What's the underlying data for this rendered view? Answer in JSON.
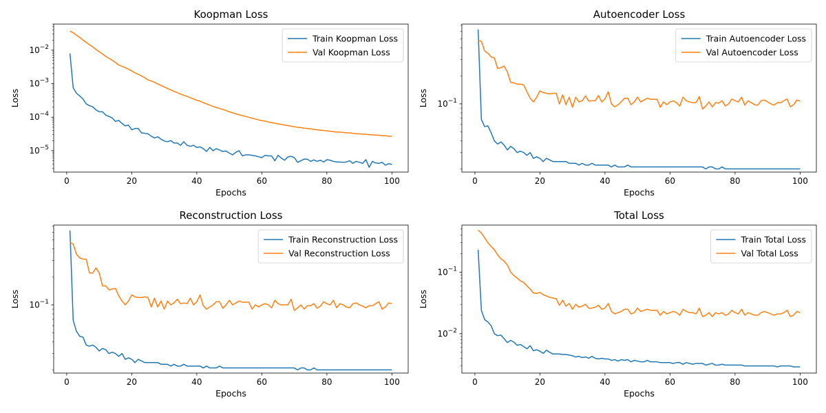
{
  "colors": {
    "train": "#1f77b4",
    "val": "#ff7f0e"
  },
  "chart_data": [
    {
      "type": "line",
      "title": "Koopman Loss",
      "xlabel": "Epochs",
      "ylabel": "Loss",
      "yscale": "log",
      "xlim": [
        -4,
        105
      ],
      "ylim": [
        2.3e-06,
        0.06
      ],
      "xticks": [
        0,
        20,
        40,
        60,
        80,
        100
      ],
      "yticks": [
        {
          "value": 1e-05,
          "mant": "10",
          "exp": "−5"
        },
        {
          "value": 0.0001,
          "mant": "10",
          "exp": "−4"
        },
        {
          "value": 0.001,
          "mant": "10",
          "exp": "−3"
        },
        {
          "value": 0.01,
          "mant": "10",
          "exp": "−2"
        }
      ],
      "legend": "top-right",
      "grid": false,
      "x_start": 1,
      "series": [
        {
          "name": "Train Koopman Loss",
          "color": "#1f77b4",
          "values": [
            0.008,
            0.00075,
            0.00052,
            0.00043,
            0.00035,
            0.00025,
            0.00022,
            0.000205,
            0.000165,
            0.000145,
            0.000145,
            0.000115,
            0.000105,
            9.5e-05,
            7.5e-05,
            8e-05,
            6.5e-05,
            5.5e-05,
            5.8e-05,
            4.2e-05,
            4.6e-05,
            4.6e-05,
            3.4e-05,
            3.3e-05,
            3.2e-05,
            2.7e-05,
            2.4e-05,
            2.6e-05,
            2.2e-05,
            1.95e-05,
            1.85e-05,
            2e-05,
            1.7e-05,
            1.7e-05,
            1.45e-05,
            1.85e-05,
            1.45e-05,
            1.35e-05,
            1.45e-05,
            1.25e-05,
            1.3e-05,
            1.15e-05,
            9.5e-06,
            1.25e-05,
            1e-05,
            1.15e-05,
            1.05e-05,
            9.5e-06,
            9.8e-06,
            8.5e-06,
            7.5e-06,
            9e-06,
            1e-05,
            7e-06,
            7.5e-06,
            7.5e-06,
            7.3e-06,
            7e-06,
            6.6e-06,
            6.2e-06,
            7.3e-06,
            7e-06,
            7e-06,
            5e-06,
            7.3e-06,
            6e-06,
            5.2e-06,
            6.5e-06,
            6.8e-06,
            6.2e-06,
            4.5e-06,
            5e-06,
            5.6e-06,
            5.6e-06,
            4.8e-06,
            5.3e-06,
            4.8e-06,
            5.2e-06,
            4.6e-06,
            5.4e-06,
            5.2e-06,
            4.8e-06,
            4.6e-06,
            4.6e-06,
            4.5e-06,
            4.6e-06,
            5e-06,
            4.2e-06,
            4.8e-06,
            4.5e-06,
            4.2e-06,
            5.4e-06,
            3.2e-06,
            4.8e-06,
            4.3e-06,
            4.2e-06,
            4.5e-06,
            3.7e-06,
            4.1e-06,
            3.9e-06
          ]
        },
        {
          "name": "Val Koopman Loss",
          "color": "#ff7f0e",
          "values": [
            0.037,
            0.033,
            0.028,
            0.024,
            0.02,
            0.017,
            0.0145,
            0.0125,
            0.0105,
            0.009,
            0.0077,
            0.0065,
            0.0057,
            0.005,
            0.0043,
            0.0036,
            0.0033,
            0.003,
            0.0027,
            0.0024,
            0.0021,
            0.0019,
            0.0017,
            0.0015,
            0.0013,
            0.0012,
            0.0011,
            0.00098,
            0.00089,
            0.0008,
            0.00072,
            0.00065,
            0.00059,
            0.00054,
            0.00049,
            0.00045,
            0.00042,
            0.00038,
            0.00035,
            0.00032,
            0.0003,
            0.00027,
            0.00025,
            0.00023,
            0.00021,
            0.000195,
            0.000182,
            0.00017,
            0.000158,
            0.000145,
            0.000135,
            0.000126,
            0.000118,
            0.000112,
            0.000105,
            9.9e-05,
            9.3e-05,
            8.8e-05,
            8.3e-05,
            7.9e-05,
            7.6e-05,
            7.2e-05,
            6.9e-05,
            6.6e-05,
            6.3e-05,
            6.1e-05,
            5.8e-05,
            5.6e-05,
            5.4e-05,
            5.2e-05,
            5e-05,
            4.9e-05,
            4.7e-05,
            4.6e-05,
            4.5e-05,
            4.3e-05,
            4.2e-05,
            4.1e-05,
            4e-05,
            3.9e-05,
            3.8e-05,
            3.7e-05,
            3.6e-05,
            3.6e-05,
            3.5e-05,
            3.4e-05,
            3.4e-05,
            3.3e-05,
            3.2e-05,
            3.2e-05,
            3.1e-05,
            3.1e-05,
            3e-05,
            3e-05,
            2.9e-05,
            2.9e-05,
            2.8e-05,
            2.8e-05,
            2.7e-05,
            2.7e-05
          ]
        }
      ]
    },
    {
      "type": "line",
      "title": "Autoencoder Loss",
      "xlabel": "Epochs",
      "ylabel": "Loss",
      "yscale": "log",
      "xlim": [
        -4,
        105
      ],
      "ylim": [
        0.0185,
        0.72
      ],
      "xticks": [
        0,
        20,
        40,
        60,
        80,
        100
      ],
      "yticks": [
        {
          "value": 0.1,
          "mant": "10",
          "exp": "−1"
        }
      ],
      "legend": "top-right",
      "grid": false,
      "x_start": 1,
      "series": [
        {
          "name": "Train Autoencoder Loss",
          "color": "#1f77b4",
          "values": [
            0.63,
            0.068,
            0.057,
            0.058,
            0.049,
            0.04,
            0.037,
            0.039,
            0.036,
            0.032,
            0.035,
            0.033,
            0.03,
            0.031,
            0.03,
            0.028,
            0.03,
            0.026,
            0.027,
            0.026,
            0.024,
            0.026,
            0.025,
            0.024,
            0.024,
            0.024,
            0.024,
            0.024,
            0.023,
            0.023,
            0.023,
            0.022,
            0.023,
            0.022,
            0.022,
            0.023,
            0.022,
            0.022,
            0.022,
            0.022,
            0.022,
            0.021,
            0.022,
            0.021,
            0.021,
            0.021,
            0.022,
            0.021,
            0.021,
            0.021,
            0.021,
            0.021,
            0.021,
            0.021,
            0.021,
            0.021,
            0.021,
            0.021,
            0.021,
            0.021,
            0.021,
            0.021,
            0.021,
            0.021,
            0.021,
            0.021,
            0.021,
            0.021,
            0.021,
            0.021,
            0.02,
            0.021,
            0.021,
            0.02,
            0.02,
            0.021,
            0.02,
            0.02,
            0.02,
            0.02,
            0.02,
            0.02,
            0.02,
            0.02,
            0.02,
            0.02,
            0.02,
            0.02,
            0.02,
            0.02,
            0.02,
            0.02,
            0.02,
            0.02,
            0.02,
            0.02,
            0.02,
            0.02,
            0.02,
            0.02
          ]
        },
        {
          "name": "Val Autoencoder Loss",
          "color": "#ff7f0e",
          "values": [
            0.48,
            0.47,
            0.37,
            0.35,
            0.32,
            0.31,
            0.24,
            0.245,
            0.255,
            0.22,
            0.17,
            0.168,
            0.163,
            0.163,
            0.16,
            0.135,
            0.115,
            0.105,
            0.118,
            0.138,
            0.132,
            0.13,
            0.128,
            0.13,
            0.13,
            0.1,
            0.125,
            0.098,
            0.118,
            0.092,
            0.118,
            0.105,
            0.108,
            0.122,
            0.107,
            0.108,
            0.108,
            0.123,
            0.105,
            0.113,
            0.135,
            0.1,
            0.093,
            0.098,
            0.105,
            0.115,
            0.115,
            0.098,
            0.105,
            0.118,
            0.105,
            0.11,
            0.115,
            0.112,
            0.112,
            0.112,
            0.092,
            0.105,
            0.098,
            0.105,
            0.108,
            0.103,
            0.095,
            0.118,
            0.108,
            0.105,
            0.103,
            0.103,
            0.12,
            0.088,
            0.095,
            0.105,
            0.093,
            0.103,
            0.102,
            0.108,
            0.095,
            0.1,
            0.113,
            0.108,
            0.105,
            0.118,
            0.097,
            0.108,
            0.103,
            0.098,
            0.097,
            0.108,
            0.11,
            0.105,
            0.1,
            0.097,
            0.103,
            0.103,
            0.108,
            0.113,
            0.093,
            0.098,
            0.11,
            0.107
          ]
        }
      ]
    },
    {
      "type": "line",
      "title": "Reconstruction Loss",
      "xlabel": "Epochs",
      "ylabel": "Loss",
      "yscale": "log",
      "xlim": [
        -4,
        105
      ],
      "ylim": [
        0.0185,
        0.72
      ],
      "xticks": [
        0,
        20,
        40,
        60,
        80,
        100
      ],
      "yticks": [
        {
          "value": 0.1,
          "mant": "10",
          "exp": "−1"
        }
      ],
      "legend": "top-right",
      "grid": false,
      "x_start": 1,
      "series": [
        {
          "name": "Train Reconstruction Loss",
          "color": "#1f77b4",
          "values": [
            0.63,
            0.068,
            0.052,
            0.046,
            0.045,
            0.037,
            0.036,
            0.037,
            0.035,
            0.032,
            0.034,
            0.033,
            0.03,
            0.031,
            0.03,
            0.028,
            0.03,
            0.026,
            0.027,
            0.026,
            0.024,
            0.026,
            0.025,
            0.024,
            0.024,
            0.024,
            0.024,
            0.024,
            0.023,
            0.023,
            0.023,
            0.022,
            0.023,
            0.022,
            0.022,
            0.023,
            0.022,
            0.022,
            0.022,
            0.022,
            0.022,
            0.021,
            0.022,
            0.021,
            0.021,
            0.021,
            0.022,
            0.021,
            0.021,
            0.021,
            0.021,
            0.021,
            0.021,
            0.021,
            0.021,
            0.021,
            0.021,
            0.021,
            0.021,
            0.021,
            0.021,
            0.021,
            0.021,
            0.021,
            0.021,
            0.021,
            0.021,
            0.021,
            0.021,
            0.021,
            0.02,
            0.021,
            0.021,
            0.02,
            0.02,
            0.021,
            0.02,
            0.02,
            0.02,
            0.02,
            0.02,
            0.02,
            0.02,
            0.02,
            0.02,
            0.02,
            0.02,
            0.02,
            0.02,
            0.02,
            0.02,
            0.02,
            0.02,
            0.02,
            0.02,
            0.02,
            0.02,
            0.02,
            0.02,
            0.02
          ]
        },
        {
          "name": "Val Reconstruction Loss",
          "color": "#ff7f0e",
          "values": [
            0.47,
            0.45,
            0.35,
            0.32,
            0.31,
            0.31,
            0.22,
            0.22,
            0.25,
            0.22,
            0.16,
            0.16,
            0.145,
            0.148,
            0.15,
            0.125,
            0.11,
            0.1,
            0.11,
            0.128,
            0.122,
            0.12,
            0.12,
            0.122,
            0.12,
            0.095,
            0.118,
            0.095,
            0.11,
            0.09,
            0.11,
            0.1,
            0.105,
            0.115,
            0.103,
            0.105,
            0.103,
            0.118,
            0.1,
            0.108,
            0.128,
            0.098,
            0.09,
            0.095,
            0.1,
            0.108,
            0.108,
            0.092,
            0.1,
            0.112,
            0.1,
            0.105,
            0.11,
            0.107,
            0.107,
            0.107,
            0.09,
            0.1,
            0.095,
            0.1,
            0.103,
            0.1,
            0.093,
            0.112,
            0.103,
            0.1,
            0.1,
            0.1,
            0.115,
            0.087,
            0.093,
            0.1,
            0.09,
            0.098,
            0.098,
            0.103,
            0.092,
            0.097,
            0.108,
            0.103,
            0.1,
            0.112,
            0.093,
            0.103,
            0.1,
            0.095,
            0.093,
            0.103,
            0.105,
            0.1,
            0.097,
            0.093,
            0.098,
            0.098,
            0.103,
            0.108,
            0.09,
            0.095,
            0.105,
            0.103
          ]
        }
      ]
    },
    {
      "type": "line",
      "title": "Total Loss",
      "xlabel": "Epochs",
      "ylabel": "Loss",
      "yscale": "log",
      "xlim": [
        -4,
        105
      ],
      "ylim": [
        0.0023,
        0.58
      ],
      "xticks": [
        0,
        20,
        40,
        60,
        80,
        100
      ],
      "yticks": [
        {
          "value": 0.01,
          "mant": "10",
          "exp": "−2"
        },
        {
          "value": 0.1,
          "mant": "10",
          "exp": "−1"
        }
      ],
      "legend": "top-right",
      "grid": false,
      "x_start": 1,
      "series": [
        {
          "name": "Train Total Loss",
          "color": "#1f77b4",
          "values": [
            0.23,
            0.024,
            0.017,
            0.0155,
            0.0135,
            0.01,
            0.0093,
            0.0095,
            0.0083,
            0.0072,
            0.0078,
            0.0073,
            0.0065,
            0.0067,
            0.0062,
            0.0057,
            0.0064,
            0.0053,
            0.0055,
            0.0052,
            0.0048,
            0.0054,
            0.005,
            0.0047,
            0.0047,
            0.0047,
            0.0046,
            0.0046,
            0.0045,
            0.0044,
            0.0042,
            0.0043,
            0.0041,
            0.0042,
            0.004,
            0.0043,
            0.004,
            0.0039,
            0.004,
            0.0039,
            0.0039,
            0.0037,
            0.0038,
            0.0036,
            0.0038,
            0.0037,
            0.0038,
            0.0035,
            0.0037,
            0.0036,
            0.0035,
            0.0035,
            0.0037,
            0.0035,
            0.0035,
            0.0035,
            0.0034,
            0.0034,
            0.0034,
            0.0034,
            0.0033,
            0.0034,
            0.0034,
            0.0032,
            0.0034,
            0.0033,
            0.0032,
            0.0033,
            0.0033,
            0.0033,
            0.0031,
            0.0032,
            0.0033,
            0.0031,
            0.0031,
            0.0032,
            0.0031,
            0.0031,
            0.0031,
            0.0031,
            0.0031,
            0.0031,
            0.003,
            0.003,
            0.003,
            0.003,
            0.003,
            0.003,
            0.003,
            0.003,
            0.003,
            0.003,
            0.0029,
            0.003,
            0.003,
            0.003,
            0.003,
            0.0029,
            0.0029,
            0.0029
          ]
        },
        {
          "name": "Val Total Loss",
          "color": "#ff7f0e",
          "values": [
            0.48,
            0.43,
            0.36,
            0.3,
            0.26,
            0.23,
            0.19,
            0.165,
            0.15,
            0.13,
            0.1,
            0.088,
            0.08,
            0.072,
            0.068,
            0.06,
            0.053,
            0.046,
            0.045,
            0.047,
            0.043,
            0.041,
            0.039,
            0.038,
            0.037,
            0.029,
            0.035,
            0.028,
            0.031,
            0.025,
            0.03,
            0.027,
            0.028,
            0.03,
            0.026,
            0.026,
            0.027,
            0.029,
            0.025,
            0.026,
            0.031,
            0.023,
            0.021,
            0.022,
            0.023,
            0.025,
            0.025,
            0.021,
            0.022,
            0.026,
            0.023,
            0.024,
            0.025,
            0.024,
            0.024,
            0.024,
            0.02,
            0.023,
            0.021,
            0.022,
            0.023,
            0.022,
            0.02,
            0.025,
            0.023,
            0.022,
            0.022,
            0.021,
            0.026,
            0.019,
            0.02,
            0.022,
            0.019,
            0.022,
            0.021,
            0.022,
            0.02,
            0.021,
            0.024,
            0.022,
            0.021,
            0.025,
            0.02,
            0.022,
            0.021,
            0.02,
            0.02,
            0.022,
            0.023,
            0.022,
            0.021,
            0.02,
            0.021,
            0.021,
            0.022,
            0.024,
            0.019,
            0.02,
            0.023,
            0.022
          ]
        }
      ]
    }
  ]
}
